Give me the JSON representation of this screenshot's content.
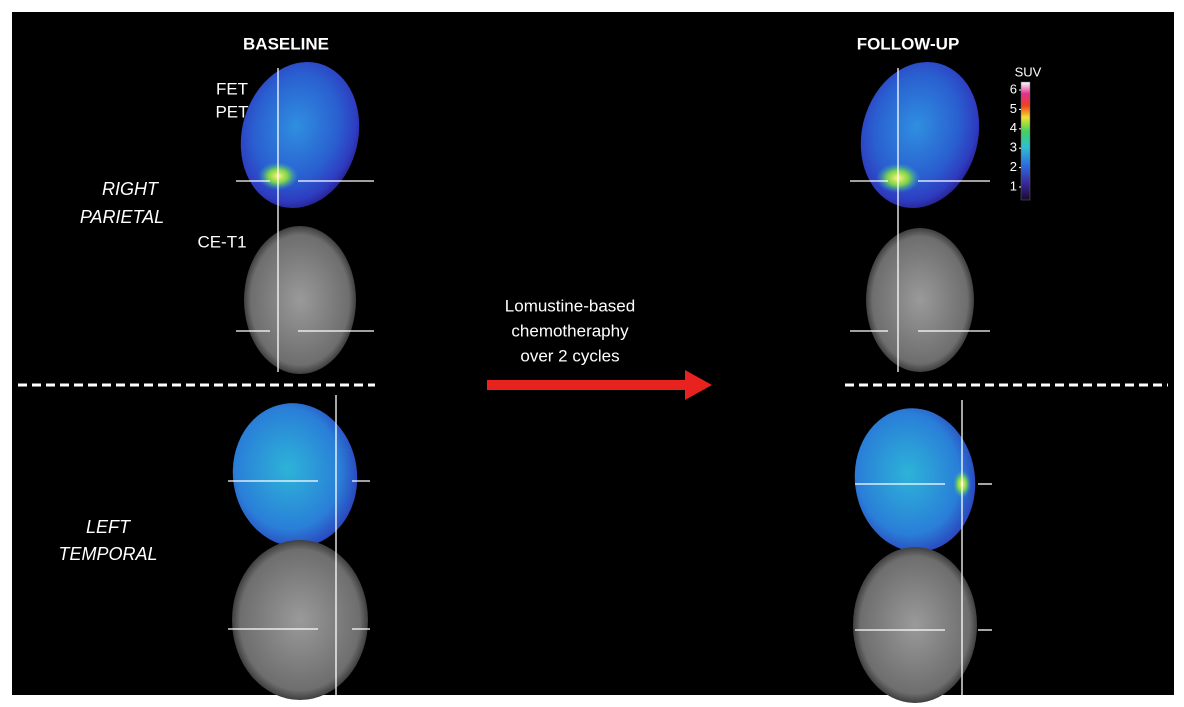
{
  "headers": {
    "baseline": "BASELINE",
    "follow_up": "FOLLOW-UP"
  },
  "labels": {
    "fet_pet": [
      "FET",
      "PET"
    ],
    "ce_t1": "CE-T1"
  },
  "rows": [
    {
      "label": [
        "RIGHT",
        "PARIETAL"
      ]
    },
    {
      "label": [
        "LEFT",
        "TEMPORAL"
      ]
    }
  ],
  "treatment": [
    "Lomustine-based",
    "chemotheraphy",
    "over 2 cycles"
  ],
  "colorbar": {
    "title": "SUV",
    "ticks": [
      1,
      2,
      3,
      4,
      5,
      6
    ]
  }
}
